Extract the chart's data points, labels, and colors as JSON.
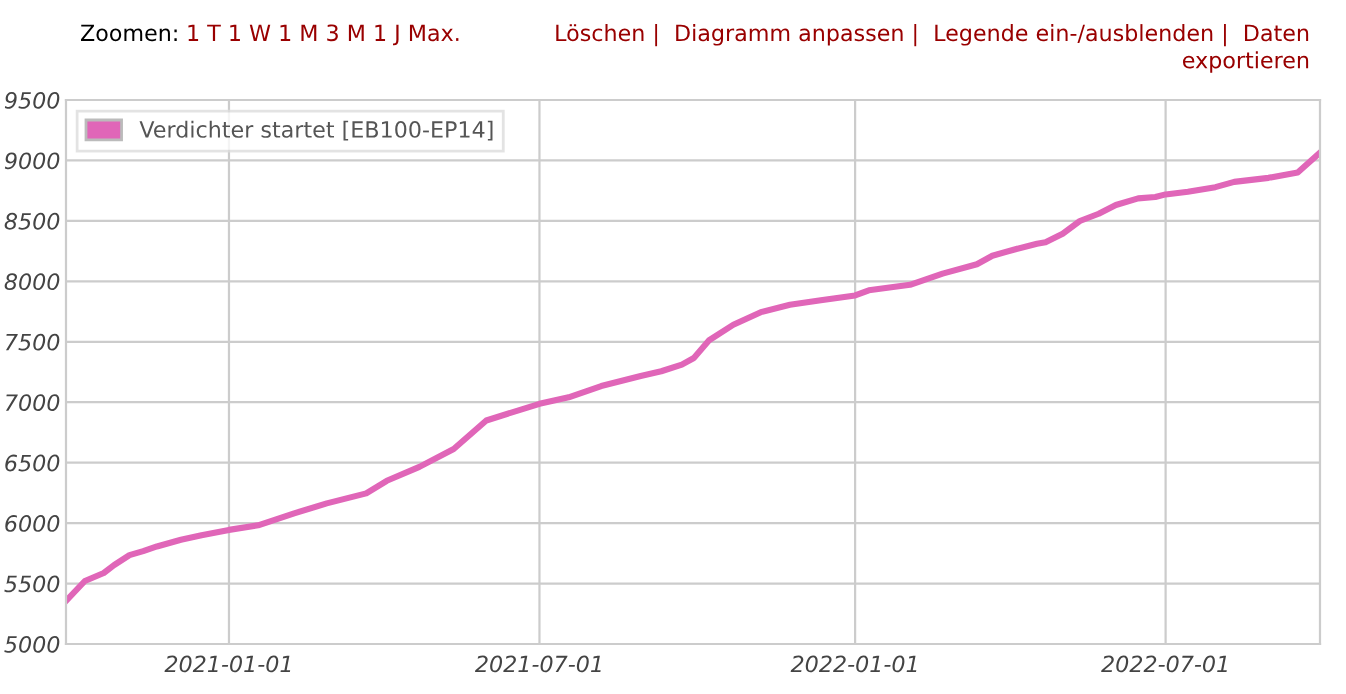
{
  "chart_data": {
    "type": "line",
    "annotations": [
      "Zoomen:",
      "1 T 1 W 1 M 3 M 1 J Max.",
      "Löschen |  Diagramm anpassen |  Legende ein-/ausblenden |  Daten\nexportieren"
    ],
    "x": [
      "2020-09-28",
      "2020-10-09",
      "2020-10-20",
      "2020-10-26",
      "2020-11-04",
      "2020-11-12",
      "2020-11-20",
      "2020-12-04",
      "2020-12-16",
      "2021-01-01",
      "2021-01-18",
      "2021-02-08",
      "2021-02-27",
      "2021-03-22",
      "2021-04-03",
      "2021-04-22",
      "2021-05-12",
      "2021-05-31",
      "2021-07-01",
      "2021-07-18",
      "2021-08-06",
      "2021-08-29",
      "2021-09-10",
      "2021-09-22",
      "2021-09-29",
      "2021-10-08",
      "2021-10-22",
      "2021-11-07",
      "2021-11-24",
      "2021-12-12",
      "2022-01-01",
      "2022-01-09",
      "2022-02-02",
      "2022-02-21",
      "2022-03-13",
      "2022-03-22",
      "2022-04-05",
      "2022-04-17",
      "2022-04-22",
      "2022-05-02",
      "2022-05-12",
      "2022-05-23",
      "2022-06-02",
      "2022-06-15",
      "2022-06-25",
      "2022-07-01",
      "2022-07-14",
      "2022-07-30",
      "2022-08-10",
      "2022-08-30",
      "2022-09-16",
      "2022-09-29"
    ],
    "series": [
      {
        "name": "Verdichter startet [EB100-EP14]",
        "color": "#e066b8",
        "values": [
          5357,
          5521,
          5587,
          5653,
          5735,
          5768,
          5807,
          5862,
          5900,
          5944,
          5982,
          6081,
          6163,
          6246,
          6350,
          6465,
          6613,
          6849,
          6987,
          7041,
          7134,
          7217,
          7256,
          7311,
          7366,
          7514,
          7641,
          7745,
          7806,
          7844,
          7883,
          7926,
          7971,
          8064,
          8141,
          8212,
          8268,
          8311,
          8323,
          8394,
          8499,
          8559,
          8631,
          8686,
          8697,
          8719,
          8741,
          8779,
          8823,
          8856,
          8900,
          9065
        ]
      }
    ],
    "xlim": [
      "2020-09-28",
      "2022-09-29"
    ],
    "xticks": [
      "2021-01-01",
      "2021-07-01",
      "2022-01-01",
      "2022-07-01"
    ],
    "ylim": [
      5000,
      9500
    ],
    "yticks": [
      5000,
      5500,
      6000,
      6500,
      7000,
      7500,
      8000,
      8500,
      9000,
      9500
    ],
    "grid": true,
    "legend": "top left",
    "marker": "none",
    "line_style": "solid"
  }
}
